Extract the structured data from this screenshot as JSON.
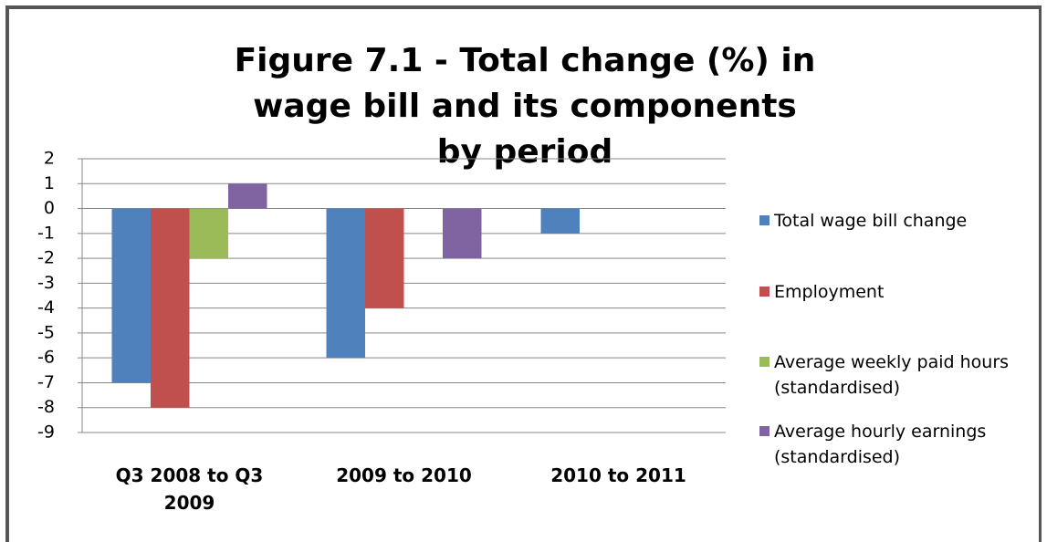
{
  "chart_data": {
    "type": "bar",
    "title": "Figure 7.1 - Total change (%) in wage bill and its components by period",
    "categories": [
      "Q3 2008 to Q3 2009",
      "2009 to 2010",
      "2010 to 2011"
    ],
    "series": [
      {
        "name": "Total wage bill change",
        "color": "#4f81bd",
        "values": [
          -7,
          -6,
          -1
        ]
      },
      {
        "name": "Employment",
        "color": "#c0504d",
        "values": [
          -8,
          -4,
          null
        ]
      },
      {
        "name": "Average weekly paid hours (standardised)",
        "color": "#9bbb59",
        "values": [
          -2,
          0,
          null
        ]
      },
      {
        "name": "Average hourly earnings (standardised)",
        "color": "#8064a2",
        "values": [
          1,
          -2,
          null
        ]
      }
    ],
    "ylim": [
      -9,
      2
    ],
    "yticks": [
      2,
      1,
      0,
      -1,
      -2,
      -3,
      -4,
      -5,
      -6,
      -7,
      -8,
      -9
    ],
    "grid": true,
    "legend": "right"
  }
}
